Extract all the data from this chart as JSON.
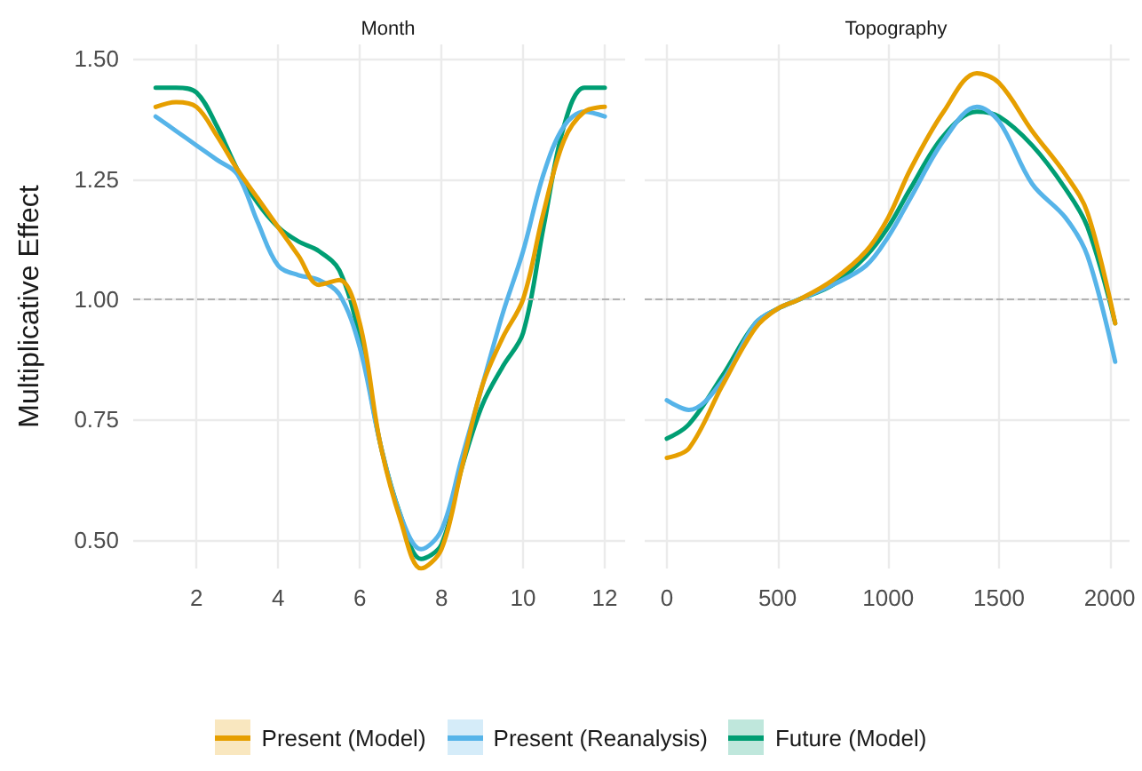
{
  "chart_data": [
    {
      "type": "line",
      "title": "Month",
      "ylabel": "Multiplicative Effect",
      "xlim": [
        0.45,
        12.5
      ],
      "xticks": [
        2,
        4,
        6,
        8,
        10,
        12
      ],
      "ylim": [
        0.44,
        1.53
      ],
      "grid": true,
      "legend": "bottom",
      "marker": "none",
      "line_style": "solid",
      "yticks": [
        {
          "value": 0.5,
          "label": "0.50"
        },
        {
          "value": 0.75,
          "label": "0.75"
        },
        {
          "value": 1.0,
          "label": "1.00"
        },
        {
          "value": 1.25,
          "label": "1.25"
        },
        {
          "value": 1.5,
          "label": "1.50"
        }
      ],
      "x": [
        1,
        1.5,
        2,
        2.5,
        3,
        3.5,
        4,
        4.5,
        5,
        5.5,
        6,
        6.5,
        7,
        7.5,
        8,
        8.5,
        9,
        9.5,
        10,
        10.5,
        11,
        11.5,
        12
      ],
      "ref_lines": [
        {
          "axis": "y",
          "value": 1.0,
          "color": "#b3b3b3",
          "line_style": "dashed"
        }
      ],
      "series": [
        {
          "name": "Present (Model)",
          "color": "#e69f00",
          "values": [
            1.4,
            1.41,
            1.4,
            1.34,
            1.27,
            1.21,
            1.15,
            1.09,
            1.03,
            1.04,
            0.95,
            0.7,
            0.54,
            0.44,
            0.48,
            0.65,
            0.82,
            0.92,
            1.0,
            1.18,
            1.33,
            1.39,
            1.4
          ]
        },
        {
          "name": "Present (Reanalysis)",
          "color": "#56b4e9",
          "values": [
            1.38,
            1.35,
            1.32,
            1.29,
            1.26,
            1.16,
            1.07,
            1.05,
            1.04,
            1.01,
            0.9,
            0.7,
            0.55,
            0.48,
            0.52,
            0.67,
            0.82,
            0.97,
            1.1,
            1.26,
            1.36,
            1.39,
            1.38
          ]
        },
        {
          "name": "Future (Model)",
          "color": "#009e73",
          "values": [
            1.44,
            1.44,
            1.43,
            1.36,
            1.27,
            1.2,
            1.15,
            1.12,
            1.1,
            1.06,
            0.92,
            0.7,
            0.55,
            0.46,
            0.49,
            0.65,
            0.78,
            0.86,
            0.93,
            1.15,
            1.36,
            1.44,
            1.44
          ]
        }
      ]
    },
    {
      "type": "line",
      "title": "Topography",
      "xlim": [
        -100,
        2090
      ],
      "xticks": [
        0,
        500,
        1000,
        1500,
        2000
      ],
      "ylim": [
        0.44,
        1.53
      ],
      "yticks": [
        0.5,
        0.75,
        1.0,
        1.25,
        1.5
      ],
      "grid": true,
      "legend": "bottom",
      "marker": "none",
      "line_style": "solid",
      "tick_labels": "x",
      "x": [
        0,
        100,
        250,
        400,
        500,
        600,
        750,
        900,
        1000,
        1100,
        1250,
        1400,
        1500,
        1650,
        1800,
        1900,
        2025
      ],
      "ref_lines": [
        {
          "axis": "y",
          "value": 1.0,
          "color": "#b3b3b3",
          "line_style": "dashed"
        }
      ],
      "series": [
        {
          "name": "Present (Model)",
          "color": "#e69f00",
          "values": [
            0.67,
            0.69,
            0.82,
            0.94,
            0.98,
            1.0,
            1.04,
            1.1,
            1.17,
            1.27,
            1.39,
            1.47,
            1.45,
            1.35,
            1.26,
            1.18,
            0.95
          ]
        },
        {
          "name": "Present (Reanalysis)",
          "color": "#56b4e9",
          "values": [
            0.79,
            0.77,
            0.83,
            0.95,
            0.98,
            1.0,
            1.03,
            1.07,
            1.13,
            1.21,
            1.33,
            1.4,
            1.37,
            1.24,
            1.17,
            1.09,
            0.87
          ]
        },
        {
          "name": "Future (Model)",
          "color": "#009e73",
          "values": [
            0.71,
            0.74,
            0.84,
            0.95,
            0.98,
            1.0,
            1.03,
            1.09,
            1.15,
            1.23,
            1.34,
            1.39,
            1.38,
            1.32,
            1.23,
            1.15,
            0.95
          ]
        }
      ]
    }
  ]
}
